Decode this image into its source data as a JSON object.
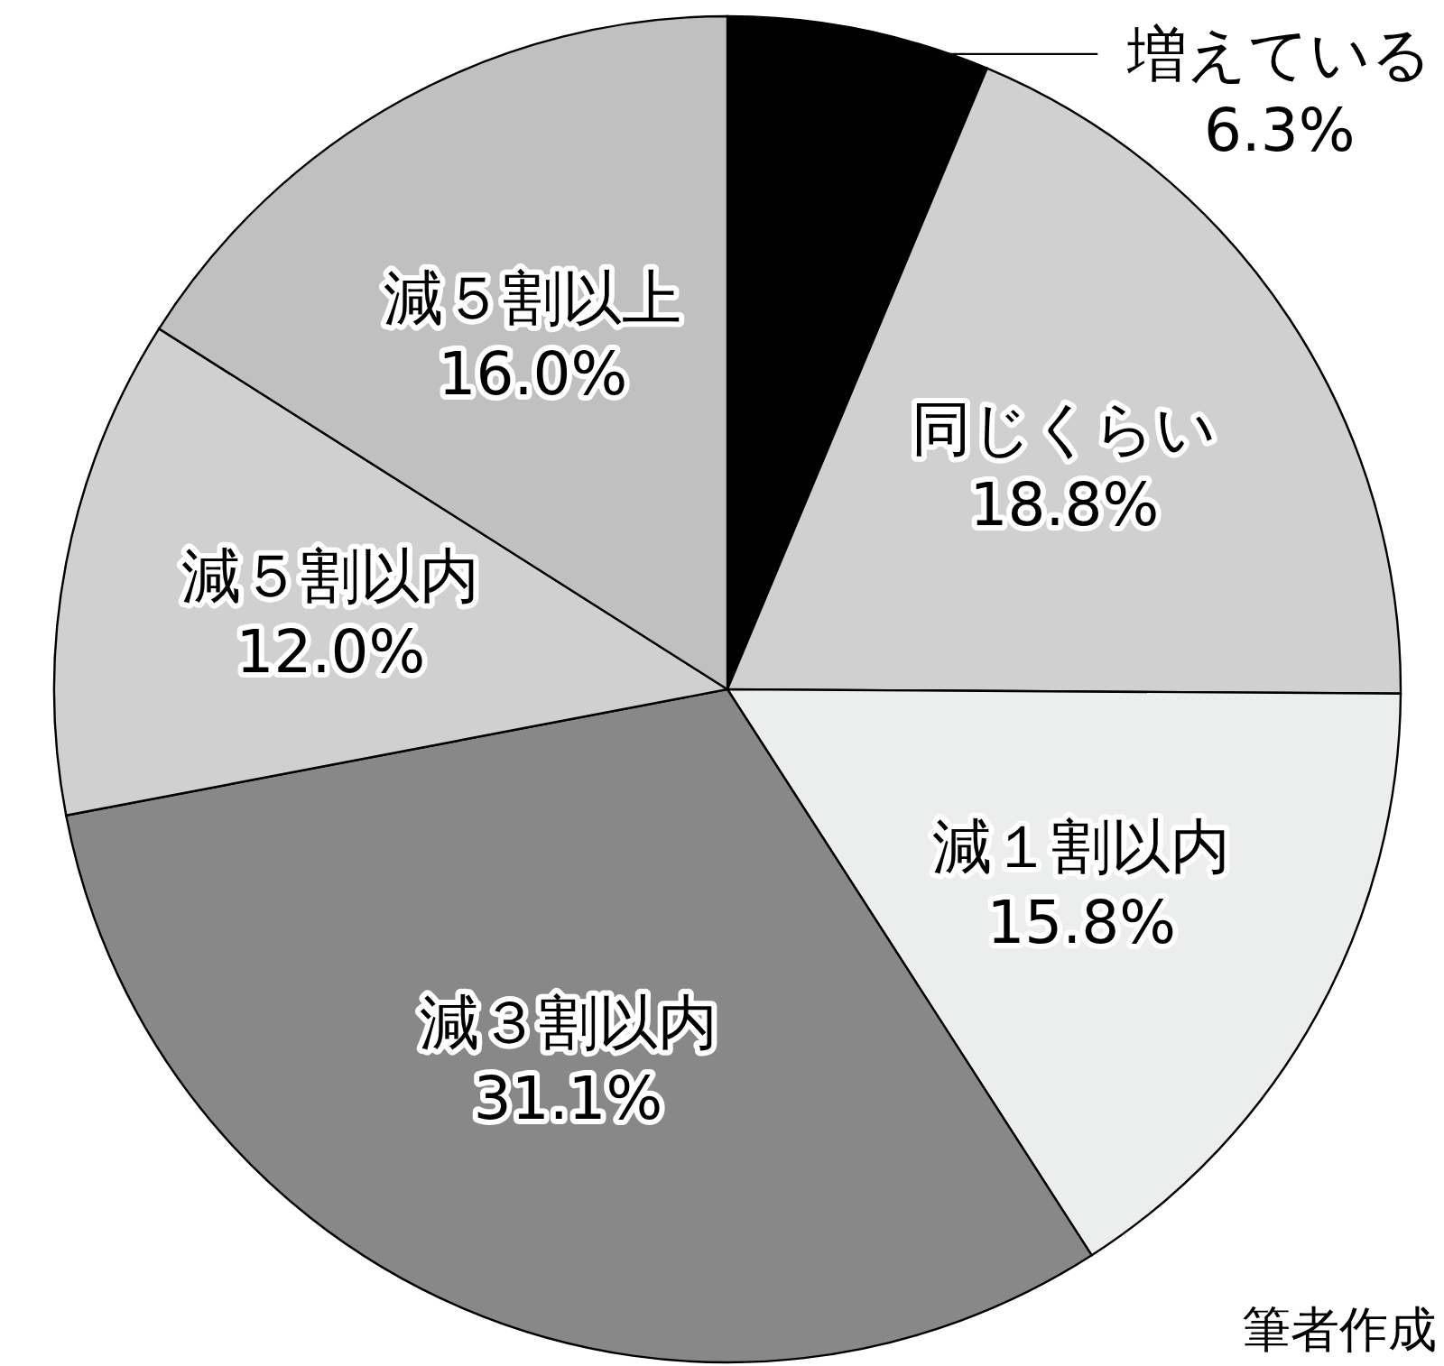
{
  "chart_data": {
    "type": "pie",
    "categories": [
      "増えている",
      "同じくらい",
      "減１割以内",
      "減３割以内",
      "減５割以内",
      "減５割以上"
    ],
    "values": [
      6.3,
      18.8,
      15.8,
      31.1,
      12.0,
      16.0
    ],
    "value_labels": [
      "6.3%",
      "18.8%",
      "15.8%",
      "31.1%",
      "12.0%",
      "16.0%"
    ],
    "colors": [
      "#000000",
      "#d0d0d0",
      "#eceeed",
      "#888888",
      "#d0d0d0",
      "#c0c0c0"
    ],
    "annotations": [
      "筆者作成"
    ]
  }
}
